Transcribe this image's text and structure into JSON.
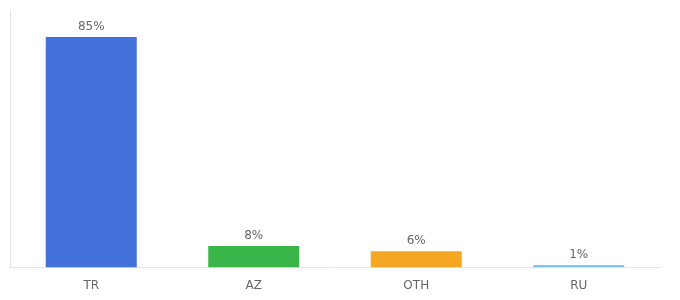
{
  "chart_data": {
    "type": "bar",
    "categories": [
      "TR",
      "AZ",
      "OTH",
      "RU"
    ],
    "values": [
      85,
      8,
      6,
      1
    ],
    "value_labels": [
      "85%",
      "8%",
      "6%",
      "1%"
    ],
    "colors": [
      "#4472db",
      "#3ab54a",
      "#f5a623",
      "#7dc8f0"
    ],
    "ylim": [
      0,
      95
    ],
    "grid": false,
    "data_labels": true,
    "tick_labels": "x"
  }
}
